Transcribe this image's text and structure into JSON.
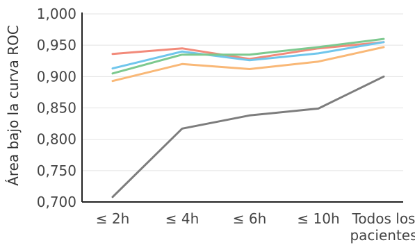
{
  "chart_data": {
    "type": "line",
    "ylabel": "Área bajo la curva ROC",
    "xlabel": "",
    "categories": [
      "≤ 2h",
      "≤ 4h",
      "≤ 6h",
      "≤ 10h",
      "Todos los pacientes"
    ],
    "category_lines": [
      [
        "≤ 2h"
      ],
      [
        "≤ 4h"
      ],
      [
        "≤ 6h"
      ],
      [
        "≤ 10h"
      ],
      [
        "Todos los",
        "pacientes"
      ]
    ],
    "ylim": [
      0.7,
      1.0
    ],
    "yticks": [
      0.7,
      0.75,
      0.8,
      0.85,
      0.9,
      0.95,
      1.0
    ],
    "ytick_labels": [
      "0,700",
      "0,750",
      "0,800",
      "0,850",
      "0,900",
      "0,950",
      "1,000"
    ],
    "grid": true,
    "legend": false,
    "series": [
      {
        "color": "#f28a7a",
        "values": [
          0.936,
          0.945,
          0.928,
          0.945,
          0.955
        ]
      },
      {
        "color": "#70c6ec",
        "values": [
          0.913,
          0.94,
          0.926,
          0.937,
          0.955
        ]
      },
      {
        "color": "#7dc98f",
        "values": [
          0.905,
          0.935,
          0.935,
          0.947,
          0.96
        ]
      },
      {
        "color": "#f9b877",
        "values": [
          0.893,
          0.92,
          0.912,
          0.924,
          0.947
        ]
      },
      {
        "color": "#7d7d7d",
        "values": [
          0.708,
          0.817,
          0.838,
          0.849,
          0.9
        ]
      }
    ]
  }
}
